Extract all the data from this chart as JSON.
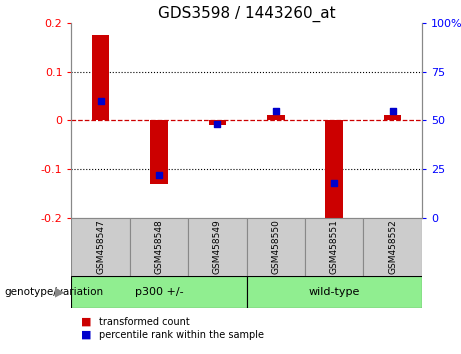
{
  "title": "GDS3598 / 1443260_at",
  "samples": [
    "GSM458547",
    "GSM458548",
    "GSM458549",
    "GSM458550",
    "GSM458551",
    "GSM458552"
  ],
  "transformed_count": [
    0.175,
    -0.13,
    -0.01,
    0.01,
    -0.215,
    0.01
  ],
  "percentile_rank": [
    60,
    22,
    48,
    55,
    18,
    55
  ],
  "ylim_left": [
    -0.2,
    0.2
  ],
  "ylim_right": [
    0,
    100
  ],
  "bar_color": "#cc0000",
  "marker_color": "#0000cc",
  "zero_line_color": "#cc0000",
  "dotted_line_color": "#000000",
  "groups": [
    {
      "label": "p300 +/-",
      "count": 3,
      "color": "#90ee90"
    },
    {
      "label": "wild-type",
      "count": 3,
      "color": "#90ee90"
    }
  ],
  "group_label": "genotype/variation",
  "legend_items": [
    {
      "label": "transformed count",
      "color": "#cc0000"
    },
    {
      "label": "percentile rank within the sample",
      "color": "#0000cc"
    }
  ],
  "title_fontsize": 11,
  "tick_fontsize": 8,
  "sample_fontsize": 6.5,
  "group_fontsize": 8,
  "legend_fontsize": 7,
  "glabel_fontsize": 7.5,
  "sample_box_color": "#cccccc",
  "sample_box_edge": "#888888"
}
